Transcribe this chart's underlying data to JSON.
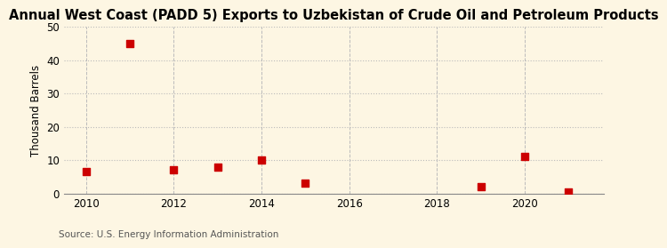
{
  "title": "Annual West Coast (PADD 5) Exports to Uzbekistan of Crude Oil and Petroleum Products",
  "ylabel": "Thousand Barrels",
  "source": "Source: U.S. Energy Information Administration",
  "years": [
    2010,
    2011,
    2012,
    2013,
    2014,
    2015,
    2019,
    2020,
    2021
  ],
  "values": [
    6.5,
    45,
    7,
    8,
    10,
    3,
    2,
    11,
    0.5
  ],
  "xlim": [
    2009.5,
    2021.8
  ],
  "ylim": [
    0,
    50
  ],
  "yticks": [
    0,
    10,
    20,
    30,
    40,
    50
  ],
  "xticks": [
    2010,
    2012,
    2014,
    2016,
    2018,
    2020
  ],
  "marker_color": "#cc0000",
  "marker_size": 36,
  "bg_color": "#fdf6e3",
  "plot_bg_color": "#fdf6e3",
  "grid_color": "#bbbbbb",
  "title_fontsize": 10.5,
  "label_fontsize": 8.5,
  "tick_fontsize": 8.5,
  "source_fontsize": 7.5
}
